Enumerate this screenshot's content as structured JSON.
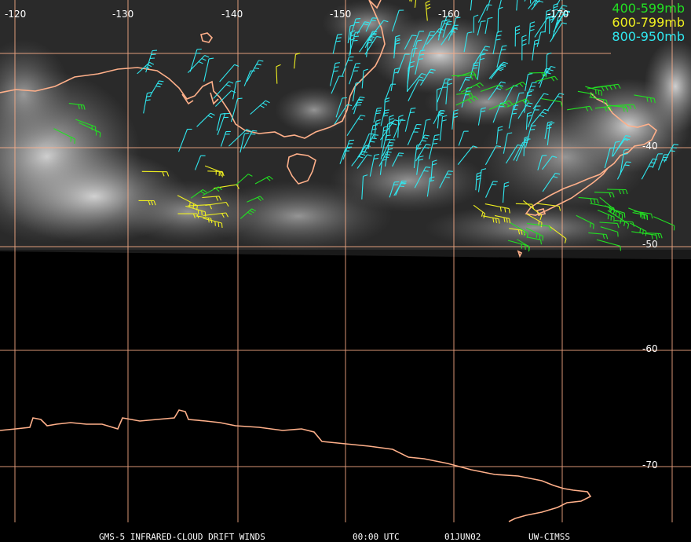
{
  "lon_labels": [
    "-120",
    "-130",
    "-140",
    "-150",
    "-160",
    "-170"
  ],
  "lat_labels": [
    "-40",
    "-50",
    "-60",
    "-70"
  ],
  "legend": [
    {
      "text": "400-599mb",
      "color": "#22e022"
    },
    {
      "text": "600-799mb",
      "color": "#f0f020"
    },
    {
      "text": "800-950mb",
      "color": "#30e8f0"
    }
  ],
  "footer": {
    "product": "GMS-5 INFRARED-CLOUD DRIFT WINDS",
    "time": "00:00 UTC",
    "date": "01JUN02",
    "source": "UW-CIMSS"
  },
  "colors": {
    "coastline": "#ffb08a",
    "grid": "#ffb08a",
    "background": "#000000"
  }
}
